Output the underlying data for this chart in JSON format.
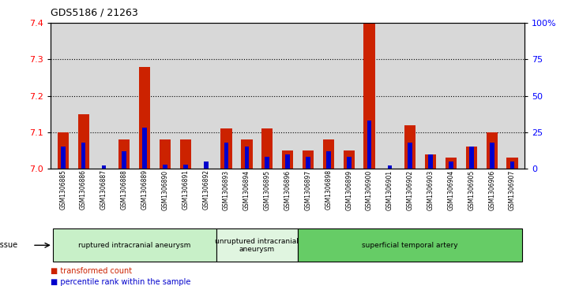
{
  "title": "GDS5186 / 21263",
  "samples": [
    "GSM1306885",
    "GSM1306886",
    "GSM1306887",
    "GSM1306888",
    "GSM1306889",
    "GSM1306890",
    "GSM1306891",
    "GSM1306892",
    "GSM1306893",
    "GSM1306894",
    "GSM1306895",
    "GSM1306896",
    "GSM1306897",
    "GSM1306898",
    "GSM1306899",
    "GSM1306900",
    "GSM1306901",
    "GSM1306902",
    "GSM1306903",
    "GSM1306904",
    "GSM1306905",
    "GSM1306906",
    "GSM1306907"
  ],
  "transformed_count": [
    7.1,
    7.15,
    7.0,
    7.08,
    7.28,
    7.08,
    7.08,
    7.0,
    7.11,
    7.08,
    7.11,
    7.05,
    7.05,
    7.08,
    7.05,
    7.4,
    7.0,
    7.12,
    7.04,
    7.03,
    7.06,
    7.1,
    7.03
  ],
  "percentile_rank": [
    15,
    18,
    2,
    12,
    28,
    3,
    3,
    5,
    18,
    15,
    8,
    10,
    8,
    12,
    8,
    33,
    2,
    18,
    10,
    5,
    15,
    18,
    5
  ],
  "groups": [
    {
      "label": "ruptured intracranial aneurysm",
      "start": 0,
      "end": 8,
      "color": "#c8f0c8"
    },
    {
      "label": "unruptured intracranial\naneurysm",
      "start": 8,
      "end": 12,
      "color": "#e0f5e0"
    },
    {
      "label": "superficial temporal artery",
      "start": 12,
      "end": 23,
      "color": "#66cc66"
    }
  ],
  "ylim_left": [
    7.0,
    7.4
  ],
  "ylim_right": [
    0,
    100
  ],
  "yticks_left": [
    7.0,
    7.1,
    7.2,
    7.3,
    7.4
  ],
  "yticks_right": [
    0,
    25,
    50,
    75,
    100
  ],
  "ytick_labels_right": [
    "0",
    "25",
    "50",
    "75",
    "100%"
  ],
  "bar_color_red": "#cc2200",
  "bar_color_blue": "#0000cc",
  "bar_width": 0.55,
  "bg_color": "#d8d8d8",
  "tissue_label": "tissue",
  "legend_items": [
    {
      "color": "#cc2200",
      "label": "transformed count"
    },
    {
      "color": "#0000cc",
      "label": "percentile rank within the sample"
    }
  ]
}
